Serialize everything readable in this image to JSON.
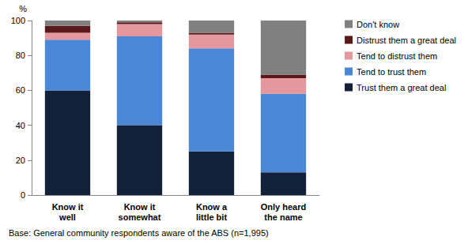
{
  "chart_data": {
    "type": "bar",
    "stacked": true,
    "legend": "right",
    "grid": false,
    "y_label": "%",
    "annotation": "Base: General community respondents aware of the ABS (n=1,995)",
    "categories": [
      "Know it\nwell",
      "Know it\nsomewhat",
      "Know a\nlittle bit",
      "Only heard\nthe name"
    ],
    "ylim": [
      0,
      100
    ],
    "yticks": [
      0,
      20,
      40,
      60,
      80,
      100
    ],
    "series": [
      {
        "name": "Trust them a great deal",
        "color": "#13203a",
        "values": [
          60,
          40,
          25,
          13
        ]
      },
      {
        "name": "Tend to trust them",
        "color": "#4a87d6",
        "values": [
          29,
          51,
          59,
          45
        ]
      },
      {
        "name": "Tend to distrust them",
        "color": "#e4979c",
        "values": [
          4,
          7,
          8,
          9
        ]
      },
      {
        "name": "Distrust them a great deal",
        "color": "#5a1818",
        "values": [
          4,
          1,
          1,
          2
        ]
      },
      {
        "name": "Don't know",
        "color": "#808080",
        "values": [
          3,
          1,
          7,
          31
        ]
      }
    ]
  }
}
